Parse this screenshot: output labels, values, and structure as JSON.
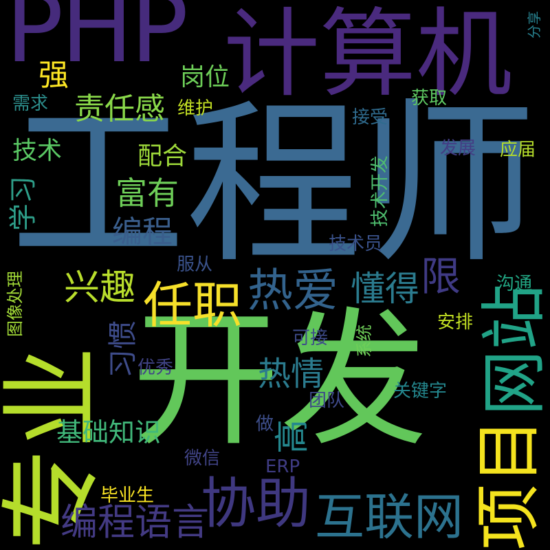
{
  "words": [
    {
      "text": "工程师",
      "color": "#3b6a92"
    },
    {
      "text": "开发",
      "color": "#62c75a"
    },
    {
      "text": "专业",
      "color": "#b5dd2b"
    },
    {
      "text": "PHP",
      "color": "#462b7c"
    },
    {
      "text": "计算机",
      "color": "#4a2a7e"
    },
    {
      "text": "项目",
      "color": "#f4e31e"
    },
    {
      "text": "网站",
      "color": "#21a387"
    },
    {
      "text": "协助",
      "color": "#3f3880"
    },
    {
      "text": "互联网",
      "color": "#2c728e"
    },
    {
      "text": "编程语言",
      "color": "#433a83"
    },
    {
      "text": "任职",
      "color": "#f6e02a"
    },
    {
      "text": "热爱",
      "color": "#33638d"
    },
    {
      "text": "懂得",
      "color": "#2b7b8e"
    },
    {
      "text": "限",
      "color": "#3f3a84"
    },
    {
      "text": "兴趣",
      "color": "#b9de2c"
    },
    {
      "text": "热情",
      "color": "#2b7b8e"
    },
    {
      "text": "高",
      "color": "#24878e"
    },
    {
      "text": "习惯",
      "color": "#3e4c8a"
    },
    {
      "text": "基础知识",
      "color": "#41b87a"
    },
    {
      "text": "责任感",
      "color": "#8ad94a"
    },
    {
      "text": "富有",
      "color": "#6ece58"
    },
    {
      "text": "编程",
      "color": "#3a5e8c"
    },
    {
      "text": "岗位",
      "color": "#6dce58"
    },
    {
      "text": "强",
      "color": "#fde724"
    },
    {
      "text": "学习",
      "color": "#2e9e89"
    },
    {
      "text": "技术",
      "color": "#5ac864"
    },
    {
      "text": "配合",
      "color": "#9ed93a"
    },
    {
      "text": "维护",
      "color": "#c2df23"
    },
    {
      "text": "获取",
      "color": "#5ec962"
    },
    {
      "text": "接受",
      "color": "#2f6b8e"
    },
    {
      "text": "发展",
      "color": "#433d84"
    },
    {
      "text": "应届",
      "color": "#b5dd2b"
    },
    {
      "text": "技术开发",
      "color": "#4fbf6f"
    },
    {
      "text": "技术员",
      "color": "#3a528b"
    },
    {
      "text": "服从",
      "color": "#3a528b"
    },
    {
      "text": "沟通",
      "color": "#22a784"
    },
    {
      "text": "安排",
      "color": "#c2df23"
    },
    {
      "text": "系统",
      "color": "#6ece58"
    },
    {
      "text": "可接",
      "color": "#3e4c8a"
    },
    {
      "text": "优秀",
      "color": "#414487"
    },
    {
      "text": "关键字",
      "color": "#24878e"
    },
    {
      "text": "团队",
      "color": "#3e4989"
    },
    {
      "text": "做",
      "color": "#3d4e8a"
    },
    {
      "text": "微信",
      "color": "#414487"
    },
    {
      "text": "ERP",
      "color": "#3f3c84"
    },
    {
      "text": "毕业生",
      "color": "#fde724"
    },
    {
      "text": "需求",
      "color": "#2c8e8c"
    },
    {
      "text": "图像处理",
      "color": "#a2da37"
    },
    {
      "text": "分享",
      "color": "#27808e"
    }
  ]
}
